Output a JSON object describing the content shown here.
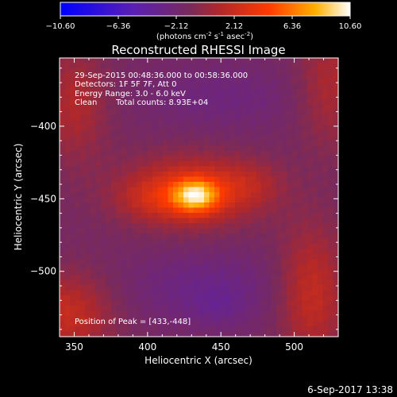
{
  "chart_data": {
    "type": "heatmap",
    "title": "Reconstructed RHESSI Image",
    "xlabel": "Heliocentric X (arcsec)",
    "ylabel": "Heliocentric Y (arcsec)",
    "xlim": [
      340,
      530
    ],
    "ylim": [
      -545,
      -353
    ],
    "x_ticks": [
      350,
      400,
      450,
      500
    ],
    "y_ticks": [
      -400,
      -450,
      -500
    ],
    "colorbar": {
      "min": -10.6,
      "max": 10.6,
      "ticks": [
        "-10.60",
        "-6.36",
        "-2.12",
        "2.12",
        "6.36",
        "10.60"
      ],
      "unit_text": "(photons cm",
      "unit_sup1": "-2",
      "unit_mid": " s",
      "unit_sup2": "-1",
      "unit_end": " asec",
      "unit_sup3": "-2",
      "unit_close": ")"
    },
    "annotations": {
      "time_range": "29-Sep-2015 00:48:36.000 to 00:58:36.000",
      "detectors": "Detectors: 1F 5F 7F, Att 0",
      "energy_range": "Energy Range: 3.0 - 6.0 keV",
      "method": "Clean",
      "total_counts": "Total counts: 8.93E+04",
      "peak_position": "Position of Peak = [433,-448]"
    },
    "peak": {
      "x": 433,
      "y": -448,
      "value": 10.6
    },
    "min_value": -10.6,
    "components": [
      {
        "x": 433,
        "y": -448,
        "sx": 11,
        "sy": 8,
        "amp": 5.5
      },
      {
        "x": 430,
        "y": -445,
        "sx": 32,
        "sy": 17,
        "amp": 3.4
      },
      {
        "x": 405,
        "y": -450,
        "sx": 18,
        "sy": 10,
        "amp": 1.2
      },
      {
        "x": 470,
        "y": -440,
        "sx": 16,
        "sy": 11,
        "amp": 1.1
      },
      {
        "x": 350,
        "y": -385,
        "sx": 16,
        "sy": 28,
        "amp": 1.9
      },
      {
        "x": 525,
        "y": -372,
        "sx": 16,
        "sy": 30,
        "amp": 1.8
      },
      {
        "x": 345,
        "y": -530,
        "sx": 22,
        "sy": 20,
        "amp": 2.6
      },
      {
        "x": 512,
        "y": -515,
        "sx": 16,
        "sy": 32,
        "amp": 2.6
      },
      {
        "x": 450,
        "y": -380,
        "sx": 38,
        "sy": 16,
        "amp": -0.9
      },
      {
        "x": 440,
        "y": -512,
        "sx": 38,
        "sy": 18,
        "amp": -1.2
      },
      {
        "x": 448,
        "y": -525,
        "sx": 12,
        "sy": 9,
        "amp": -0.6
      }
    ],
    "baseline": -1.4
  },
  "footer": {
    "date": "6-Sep-2017 13:38"
  }
}
